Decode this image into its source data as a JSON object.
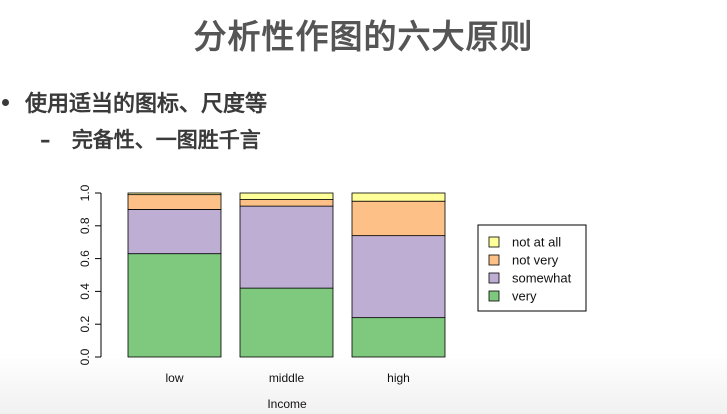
{
  "slide": {
    "title": "分析性作图的六大原则",
    "bullet1": "使用适当的图标、尺度等",
    "bullet2_dash": "–",
    "bullet2": "完备性、一图胜千言"
  },
  "chart_data": {
    "type": "bar",
    "stacked": true,
    "categories": [
      "low",
      "middle",
      "high"
    ],
    "series": [
      {
        "name": "very",
        "values": [
          0.63,
          0.42,
          0.24
        ],
        "color": "#7fc97f"
      },
      {
        "name": "somewhat",
        "values": [
          0.27,
          0.5,
          0.5
        ],
        "color": "#beaed4"
      },
      {
        "name": "not very",
        "values": [
          0.09,
          0.04,
          0.21
        ],
        "color": "#fdc086"
      },
      {
        "name": "not at all",
        "values": [
          0.01,
          0.04,
          0.05
        ],
        "color": "#ffff99"
      }
    ],
    "xlabel": "Income",
    "ylabel": "",
    "ylim": [
      0,
      1
    ],
    "yticks": [
      "0.0",
      "0.2",
      "0.4",
      "0.6",
      "0.8",
      "1.0"
    ],
    "legend_placement": "right",
    "legend_order": [
      "not at all",
      "not very",
      "somewhat",
      "very"
    ],
    "grid": false
  }
}
